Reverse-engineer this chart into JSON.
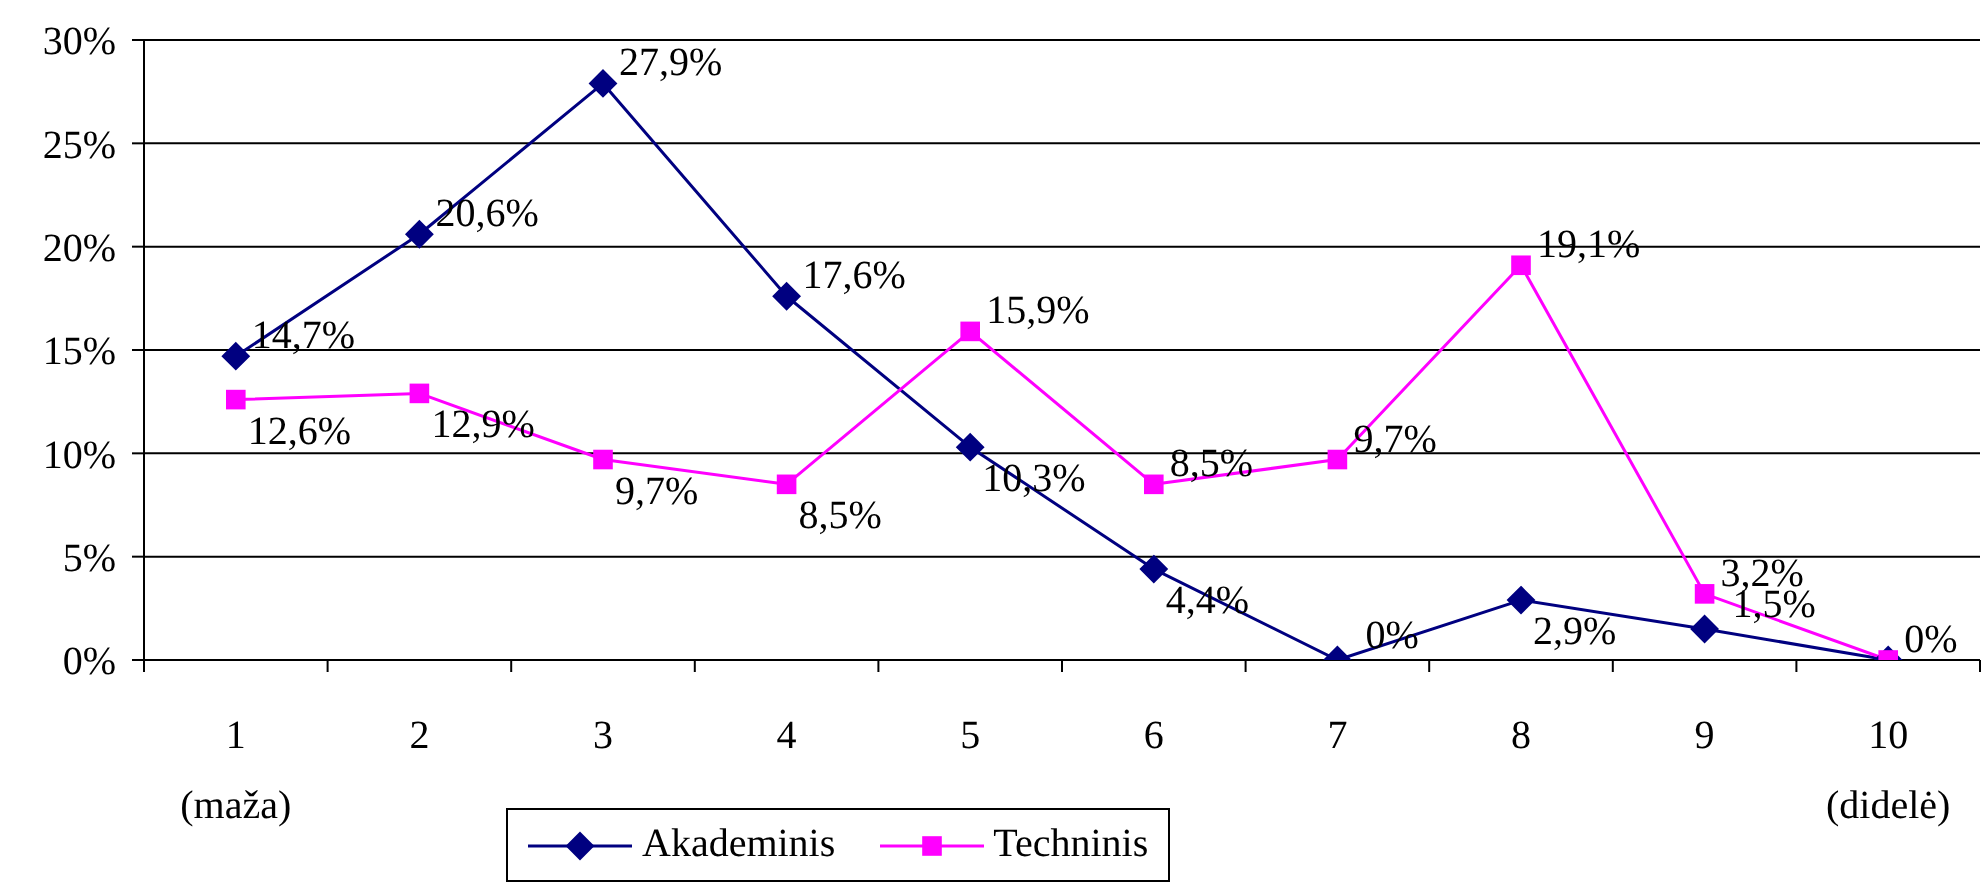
{
  "chart_data": {
    "type": "line",
    "categories": [
      "1\n(maža)",
      "2",
      "3",
      "4",
      "5",
      "6",
      "7",
      "8",
      "9",
      "10\n(didelė)"
    ],
    "series": [
      {
        "name": "Akademinis",
        "color": "#000080",
        "marker": "diamond",
        "values": [
          14.7,
          20.6,
          27.9,
          17.6,
          10.3,
          4.4,
          0,
          2.9,
          1.5,
          0
        ],
        "value_labels": [
          "14,7%",
          "20,6%",
          "27,9%",
          "17,6%",
          "10,3%",
          "4,4%",
          "0%",
          "2,9%",
          "1,5%",
          "0%"
        ]
      },
      {
        "name": "Techninis",
        "color": "#ff00ff",
        "marker": "square",
        "values": [
          12.6,
          12.9,
          9.7,
          8.5,
          15.9,
          8.5,
          9.7,
          19.1,
          3.2,
          0
        ],
        "value_labels": [
          "12,6%",
          "12,9%",
          "9,7%",
          "8,5%",
          "15,9%",
          "8,5%",
          "9,7%",
          "19,1%",
          "3,2%",
          null
        ]
      }
    ],
    "ylim": [
      0,
      30
    ],
    "yticks": [
      {
        "value": 0,
        "label": "0%"
      },
      {
        "value": 5,
        "label": "5%"
      },
      {
        "value": 10,
        "label": "10%"
      },
      {
        "value": 15,
        "label": "15%"
      },
      {
        "value": 20,
        "label": "20%"
      },
      {
        "value": 25,
        "label": "25%"
      },
      {
        "value": 30,
        "label": "30%"
      }
    ],
    "grid": "y",
    "legend": "bottom",
    "line_style": "solid"
  }
}
